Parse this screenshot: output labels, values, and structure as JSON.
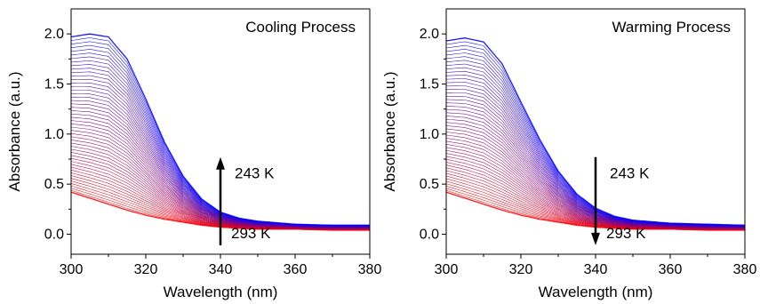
{
  "chart_data": [
    {
      "type": "line",
      "title": "Cooling Process",
      "xlabel": "Wavelength (nm)",
      "ylabel": "Absorbance (a.u.)",
      "xlim": [
        300,
        380
      ],
      "ylim": [
        -0.2,
        2.25
      ],
      "xticks": [
        "300",
        "320",
        "340",
        "360",
        "380"
      ],
      "yticks": [
        "0.0",
        "0.5",
        "1.0",
        "1.5",
        "2.0"
      ],
      "grid": false,
      "curve_count": 50,
      "color_start": "#ff0000",
      "color_end": "#0000ff",
      "series_range": {
        "first": {
          "temperature": "293 K",
          "x": [
            300,
            305,
            310,
            315,
            320,
            325,
            330,
            335,
            340,
            345,
            350,
            360,
            370,
            380
          ],
          "y": [
            0.42,
            0.36,
            0.3,
            0.24,
            0.19,
            0.15,
            0.12,
            0.09,
            0.07,
            0.06,
            0.05,
            0.05,
            0.04,
            0.04
          ]
        },
        "last": {
          "temperature": "243 K",
          "x": [
            300,
            305,
            310,
            315,
            320,
            325,
            330,
            335,
            340,
            345,
            350,
            360,
            370,
            380
          ],
          "y": [
            1.97,
            2.0,
            1.97,
            1.75,
            1.35,
            0.92,
            0.58,
            0.35,
            0.22,
            0.16,
            0.13,
            0.1,
            0.09,
            0.09
          ]
        }
      },
      "arrow": {
        "direction": "up",
        "x": 340,
        "from_label": "293 K",
        "to_label": "243 K"
      }
    },
    {
      "type": "line",
      "title": "Warming Process",
      "xlabel": "Wavelength (nm)",
      "ylabel": "Absorbance (a.u.)",
      "xlim": [
        300,
        380
      ],
      "ylim": [
        -0.2,
        2.25
      ],
      "xticks": [
        "300",
        "320",
        "340",
        "360",
        "380"
      ],
      "yticks": [
        "0.0",
        "0.5",
        "1.0",
        "1.5",
        "2.0"
      ],
      "grid": false,
      "curve_count": 50,
      "color_start": "#ff0000",
      "color_end": "#0000ff",
      "series_range": {
        "first": {
          "temperature": "293 K",
          "x": [
            300,
            305,
            310,
            315,
            320,
            325,
            330,
            335,
            340,
            345,
            350,
            360,
            370,
            380
          ],
          "y": [
            0.42,
            0.36,
            0.3,
            0.24,
            0.19,
            0.15,
            0.12,
            0.09,
            0.07,
            0.06,
            0.05,
            0.05,
            0.04,
            0.04
          ]
        },
        "last": {
          "temperature": "243 K",
          "x": [
            300,
            305,
            310,
            315,
            320,
            325,
            330,
            335,
            340,
            345,
            350,
            360,
            370,
            380
          ],
          "y": [
            1.93,
            1.96,
            1.92,
            1.7,
            1.32,
            0.95,
            0.63,
            0.4,
            0.26,
            0.18,
            0.14,
            0.11,
            0.1,
            0.09
          ]
        }
      },
      "arrow": {
        "direction": "down",
        "x": 340,
        "from_label": "243 K",
        "to_label": "293 K"
      }
    }
  ]
}
